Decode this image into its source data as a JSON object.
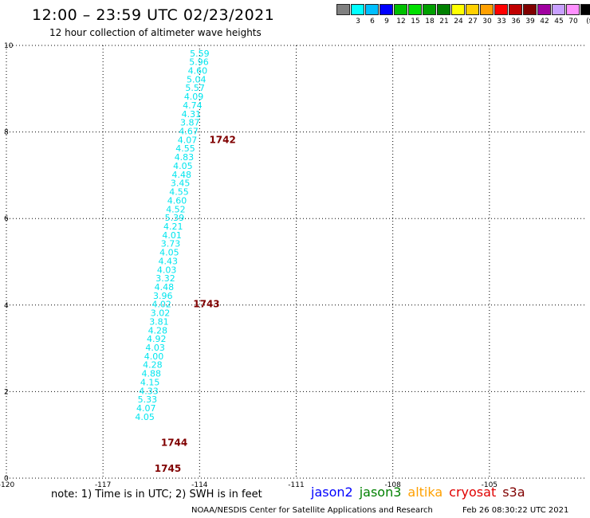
{
  "header": {
    "title": "12:00 – 23:59 UTC 02/23/2021",
    "subtitle": "12 hour collection of altimeter wave heights"
  },
  "legend": {
    "unit": "(ft)",
    "swatches": [
      {
        "color": "#808080",
        "label": ""
      },
      {
        "color": "#00ffff",
        "label": "3"
      },
      {
        "color": "#00bfff",
        "label": "6"
      },
      {
        "color": "#0000ff",
        "label": "9"
      },
      {
        "color": "#00c000",
        "label": "12"
      },
      {
        "color": "#00e000",
        "label": "15"
      },
      {
        "color": "#00a000",
        "label": "18"
      },
      {
        "color": "#008000",
        "label": "21"
      },
      {
        "color": "#ffff00",
        "label": "24"
      },
      {
        "color": "#ffd000",
        "label": "27"
      },
      {
        "color": "#ffa000",
        "label": "30"
      },
      {
        "color": "#ff0000",
        "label": "33"
      },
      {
        "color": "#c00000",
        "label": "36"
      },
      {
        "color": "#800000",
        "label": "39"
      },
      {
        "color": "#a000a0",
        "label": "42"
      },
      {
        "color": "#c8a0ff",
        "label": "45"
      },
      {
        "color": "#ff90ff",
        "label": "70"
      },
      {
        "color": "#000000",
        "label": ""
      }
    ]
  },
  "map": {
    "lon_range": [
      -120,
      -102
    ],
    "lat_range": [
      0,
      10
    ],
    "lon_ticks": [
      "-120",
      "-117",
      "-114",
      "-111",
      "-108",
      "-105"
    ],
    "lat_ticks": [
      "0",
      "2",
      "4",
      "6",
      "8",
      "10"
    ],
    "label_color": "#00e5ee",
    "pass_color": "#800000",
    "wave_heights": [
      {
        "lon": -114.0,
        "lat": 9.82,
        "swh": "5.59"
      },
      {
        "lon": -114.02,
        "lat": 9.62,
        "swh": "5.96"
      },
      {
        "lon": -114.06,
        "lat": 9.42,
        "swh": "4.60"
      },
      {
        "lon": -114.1,
        "lat": 9.22,
        "swh": "5.04"
      },
      {
        "lon": -114.14,
        "lat": 9.02,
        "swh": "5.57"
      },
      {
        "lon": -114.18,
        "lat": 8.82,
        "swh": "4.09"
      },
      {
        "lon": -114.22,
        "lat": 8.62,
        "swh": "4.74"
      },
      {
        "lon": -114.26,
        "lat": 8.42,
        "swh": "4.31"
      },
      {
        "lon": -114.3,
        "lat": 8.22,
        "swh": "3.87"
      },
      {
        "lon": -114.34,
        "lat": 8.02,
        "swh": "4.67"
      },
      {
        "lon": -114.38,
        "lat": 7.82,
        "swh": "4.07"
      },
      {
        "lon": -114.44,
        "lat": 7.62,
        "swh": "4.55"
      },
      {
        "lon": -114.48,
        "lat": 7.42,
        "swh": "4.83"
      },
      {
        "lon": -114.52,
        "lat": 7.22,
        "swh": "4.05"
      },
      {
        "lon": -114.56,
        "lat": 7.02,
        "swh": "4.48"
      },
      {
        "lon": -114.6,
        "lat": 6.82,
        "swh": "3.45"
      },
      {
        "lon": -114.64,
        "lat": 6.62,
        "swh": "4.55"
      },
      {
        "lon": -114.7,
        "lat": 6.42,
        "swh": "4.60"
      },
      {
        "lon": -114.74,
        "lat": 6.22,
        "swh": "4.52"
      },
      {
        "lon": -114.78,
        "lat": 6.02,
        "swh": "5.39"
      },
      {
        "lon": -114.82,
        "lat": 5.82,
        "swh": "4.21"
      },
      {
        "lon": -114.86,
        "lat": 5.62,
        "swh": "4.01"
      },
      {
        "lon": -114.9,
        "lat": 5.42,
        "swh": "3.73"
      },
      {
        "lon": -114.94,
        "lat": 5.22,
        "swh": "4.05"
      },
      {
        "lon": -114.98,
        "lat": 5.02,
        "swh": "4.43"
      },
      {
        "lon": -115.02,
        "lat": 4.82,
        "swh": "4.03"
      },
      {
        "lon": -115.06,
        "lat": 4.62,
        "swh": "3.32"
      },
      {
        "lon": -115.1,
        "lat": 4.42,
        "swh": "4.48"
      },
      {
        "lon": -115.14,
        "lat": 4.22,
        "swh": "3.96"
      },
      {
        "lon": -115.18,
        "lat": 4.02,
        "swh": "4.02"
      },
      {
        "lon": -115.22,
        "lat": 3.82,
        "swh": "3.02"
      },
      {
        "lon": -115.26,
        "lat": 3.62,
        "swh": "3.81"
      },
      {
        "lon": -115.3,
        "lat": 3.42,
        "swh": "4.28"
      },
      {
        "lon": -115.34,
        "lat": 3.22,
        "swh": "4.92"
      },
      {
        "lon": -115.38,
        "lat": 3.02,
        "swh": "4.03"
      },
      {
        "lon": -115.42,
        "lat": 2.82,
        "swh": "4.00"
      },
      {
        "lon": -115.46,
        "lat": 2.62,
        "swh": "4.28"
      },
      {
        "lon": -115.5,
        "lat": 2.42,
        "swh": "4.88"
      },
      {
        "lon": -115.54,
        "lat": 2.22,
        "swh": "4.15"
      },
      {
        "lon": -115.58,
        "lat": 2.02,
        "swh": "4.33"
      },
      {
        "lon": -115.62,
        "lat": 1.82,
        "swh": "5.33"
      },
      {
        "lon": -115.66,
        "lat": 1.62,
        "swh": "4.07"
      },
      {
        "lon": -115.7,
        "lat": 1.42,
        "swh": "4.05"
      }
    ],
    "pass_labels": [
      {
        "lon": -113.7,
        "lat": 7.82,
        "text": "1742"
      },
      {
        "lon": -114.2,
        "lat": 4.02,
        "text": "1743"
      },
      {
        "lon": -115.2,
        "lat": 0.82,
        "text": "1744"
      },
      {
        "lon": -115.4,
        "lat": 0.22,
        "text": "1745"
      }
    ]
  },
  "footer": {
    "note": "note:  1) Time is in UTC;  2) SWH is in feet",
    "satellites": [
      {
        "name": "jason2",
        "color": "#0000ff"
      },
      {
        "name": "jason3",
        "color": "#008000"
      },
      {
        "name": "altika",
        "color": "#ffa000"
      },
      {
        "name": "cryosat",
        "color": "#e00000"
      },
      {
        "name": "s3a",
        "color": "#800000"
      }
    ],
    "credit": "NOAA/NESDIS Center for Satellite Applications and Research",
    "timestamp": "Feb 26 08:30:22 UTC 2021"
  }
}
